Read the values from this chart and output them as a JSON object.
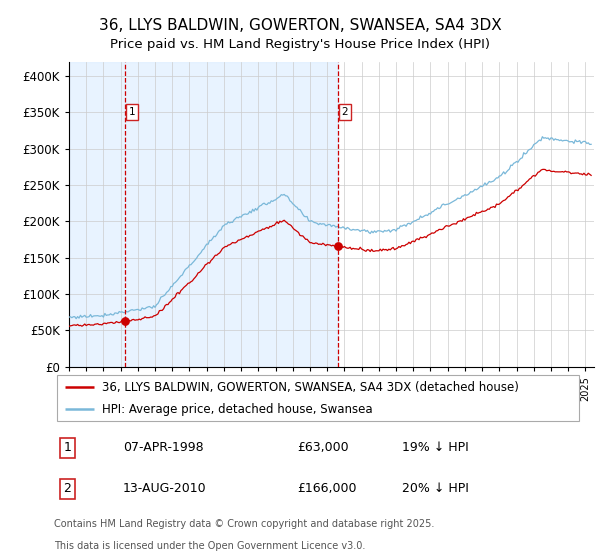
{
  "title": "36, LLYS BALDWIN, GOWERTON, SWANSEA, SA4 3DX",
  "subtitle": "Price paid vs. HM Land Registry's House Price Index (HPI)",
  "ylabel_ticks": [
    "£0",
    "£50K",
    "£100K",
    "£150K",
    "£200K",
    "£250K",
    "£300K",
    "£350K",
    "£400K"
  ],
  "ytick_values": [
    0,
    50000,
    100000,
    150000,
    200000,
    250000,
    300000,
    350000,
    400000
  ],
  "ylim": [
    0,
    420000
  ],
  "xlim_start": 1995.0,
  "xlim_end": 2025.5,
  "purchase1_date": 1998.27,
  "purchase1_price": 63000,
  "purchase2_date": 2010.62,
  "purchase2_price": 166000,
  "purchase1_label": "1",
  "purchase2_label": "2",
  "legend_line1": "36, LLYS BALDWIN, GOWERTON, SWANSEA, SA4 3DX (detached house)",
  "legend_line2": "HPI: Average price, detached house, Swansea",
  "footer1": "Contains HM Land Registry data © Crown copyright and database right 2025.",
  "footer2": "This data is licensed under the Open Government Licence v3.0.",
  "table_row1": [
    "1",
    "07-APR-1998",
    "£63,000",
    "19% ↓ HPI"
  ],
  "table_row2": [
    "2",
    "13-AUG-2010",
    "£166,000",
    "20% ↓ HPI"
  ],
  "hpi_color": "#7ab8d9",
  "price_color": "#cc0000",
  "vline_color": "#cc0000",
  "bg_shade_color": "#ddeeff",
  "grid_color": "#cccccc",
  "title_fontsize": 11,
  "subtitle_fontsize": 9.5,
  "axis_fontsize": 8.5,
  "legend_fontsize": 8.5,
  "table_fontsize": 9,
  "footer_fontsize": 7
}
